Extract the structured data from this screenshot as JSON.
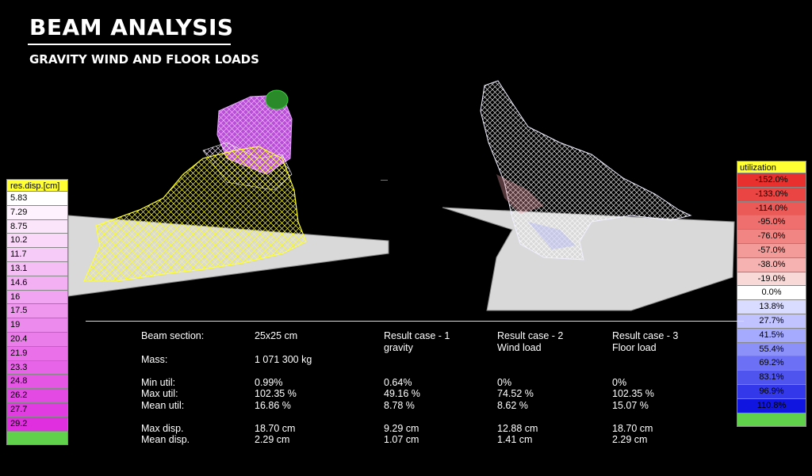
{
  "header": {
    "title": "BEAM ANALYSIS",
    "subtitle": "GRAVITY WIND AND FLOOR LOADS"
  },
  "left_legend": {
    "title": "res.disp.[cm]",
    "values": [
      "5.83",
      "7.29",
      "8.75",
      "10.2",
      "11.7",
      "13.1",
      "14.6",
      "16",
      "17.5",
      "19",
      "20.4",
      "21.9",
      "23.3",
      "24.8",
      "26.2",
      "27.7",
      "29.2"
    ],
    "colors": [
      "#ffffff",
      "#fdf2fd",
      "#fbe5fb",
      "#f9d8f9",
      "#f7cbf7",
      "#f5bef5",
      "#f3b1f3",
      "#f1a4f1",
      "#ef97ef",
      "#ed8aed",
      "#eb7deb",
      "#e970e9",
      "#e763e7",
      "#e556e5",
      "#e349e3",
      "#e13ce1",
      "#df2fdf"
    ],
    "end_color": "#5fd14a"
  },
  "right_legend": {
    "title": "utilization",
    "values": [
      "-152.0%",
      "-133.0%",
      "-114.0%",
      "-95.0%",
      "-76.0%",
      "-57.0%",
      "-38.0%",
      "-19.0%",
      "0.0%",
      "13.8%",
      "27.7%",
      "41.5%",
      "55.4%",
      "69.2%",
      "83.1%",
      "96.9%",
      "110.8%"
    ],
    "colors": [
      "#e8312f",
      "#ea4543",
      "#ec5a58",
      "#ee6f6d",
      "#f08583",
      "#f39b99",
      "#f5b2b0",
      "#f9d9d8",
      "#ffffff",
      "#dadcff",
      "#c0c3ff",
      "#a6aaff",
      "#8c91fa",
      "#6b70f5",
      "#4f54ef",
      "#3338ea",
      "#1016e0"
    ],
    "end_color": "#5fd14a"
  },
  "stats": {
    "columns": [
      "",
      "",
      "Result case - 1",
      "Result case - 2",
      "Result case - 3"
    ],
    "case_names": [
      "gravity",
      "Wind load",
      "Floor load"
    ],
    "beam_section_label": "Beam section:",
    "beam_section_value": "25x25 cm",
    "mass_label": "Mass:",
    "mass_value": "1 071 300 kg",
    "rows": [
      {
        "label": "Min util:",
        "all": "0.99%",
        "c1": "0.64%",
        "c2": "0%",
        "c3": "0%"
      },
      {
        "label": "Max util:",
        "all": "102.35 %",
        "c1": "49.16 %",
        "c2": "74.52 %",
        "c3": "102.35 %"
      },
      {
        "label": "Mean util:",
        "all": "16.86 %",
        "c1": "8.78 %",
        "c2": "8.62 %",
        "c3": "15.07 %"
      },
      {
        "label": "Max disp.",
        "all": "18.70 cm",
        "c1": "9.29 cm",
        "c2": "12.88 cm",
        "c3": "18.70 cm"
      },
      {
        "label": "Mean disp.",
        "all": "2.29 cm",
        "c1": "1.07 cm",
        "c2": "1.41 cm",
        "c3": "2.29 cm"
      }
    ]
  }
}
